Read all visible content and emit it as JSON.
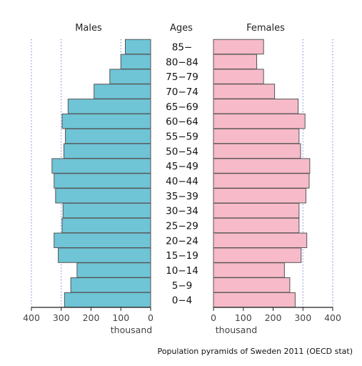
{
  "chart_data": {
    "type": "bar",
    "subtype": "population-pyramid",
    "caption": "Population pyramids of Sweden 2011 (OECD stat)",
    "center_header": "Ages",
    "categories": [
      "85−",
      "80−84",
      "75−79",
      "70−74",
      "65−69",
      "60−64",
      "55−59",
      "50−54",
      "45−49",
      "40−44",
      "35−39",
      "30−34",
      "25−29",
      "20−24",
      "15−19",
      "10−14",
      "5−9",
      "0−4"
    ],
    "series": [
      {
        "name": "Males",
        "color": "#6fc4d6",
        "values": [
          85,
          100,
          137,
          190,
          277,
          297,
          286,
          291,
          331,
          324,
          319,
          294,
          297,
          324,
          310,
          247,
          268,
          289
        ]
      },
      {
        "name": "Females",
        "color": "#f7bac9",
        "values": [
          168,
          145,
          168,
          205,
          284,
          307,
          287,
          292,
          323,
          321,
          310,
          287,
          287,
          313,
          294,
          238,
          256,
          274
        ]
      }
    ],
    "xlim": [
      0,
      400
    ],
    "xticks": [
      "400",
      "300",
      "200",
      "100",
      "0"
    ],
    "xticks_right": [
      "0",
      "100",
      "200",
      "300",
      "400"
    ],
    "xlabel": "thousand",
    "grid": "dotted vertical at 100, 300, 400"
  }
}
